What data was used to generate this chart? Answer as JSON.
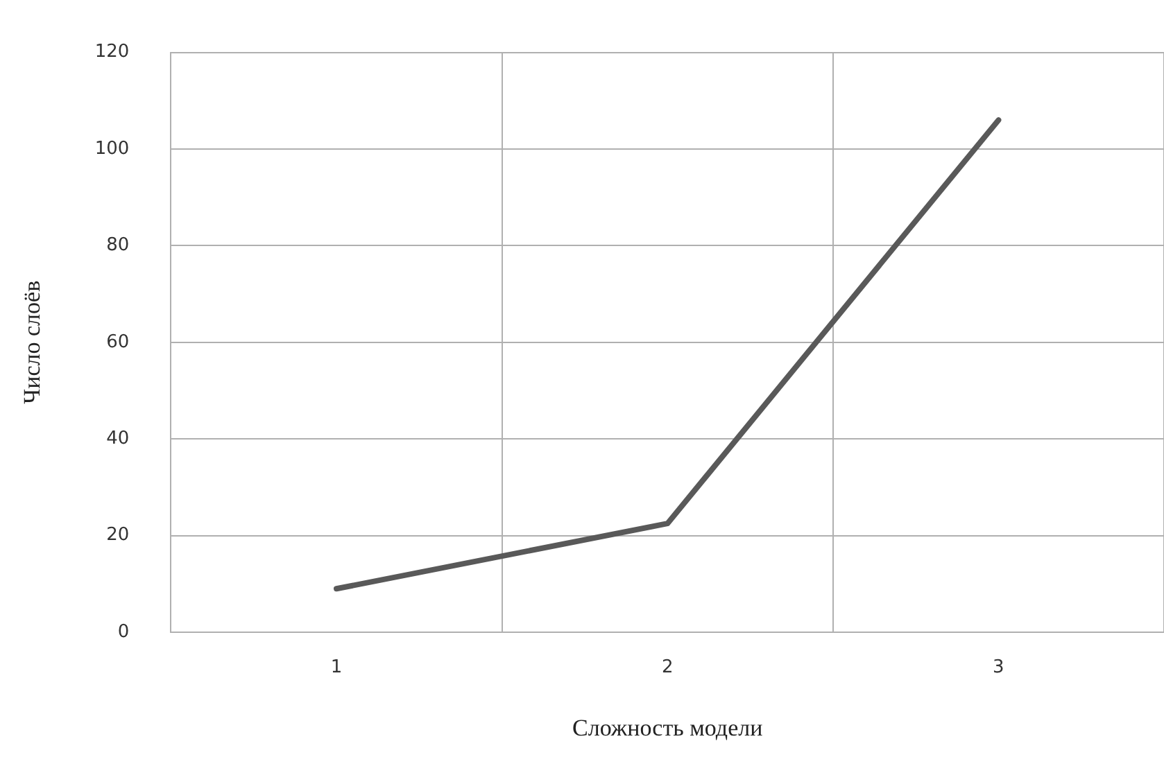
{
  "chart_data": {
    "type": "line",
    "xlabel": "Сложность модели",
    "ylabel": "Число слоёв",
    "categories": [
      "1",
      "2",
      "3"
    ],
    "series": [
      {
        "color": "#595959",
        "values": [
          9,
          22.5,
          106
        ]
      }
    ],
    "ylim": [
      0,
      120
    ],
    "yticks": [
      0,
      20,
      40,
      60,
      80,
      100,
      120
    ],
    "grid": true,
    "legend": false,
    "marker": "none",
    "line_style": "solid"
  }
}
